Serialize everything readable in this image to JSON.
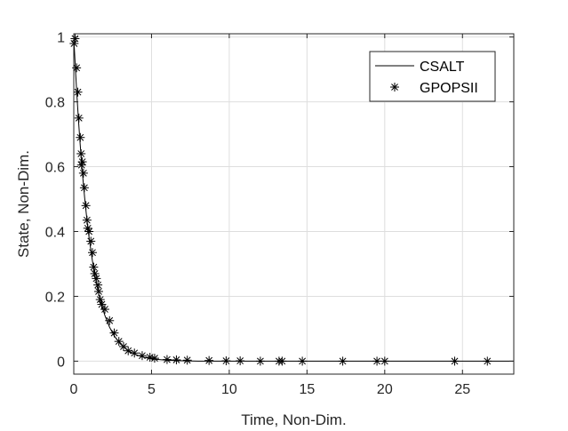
{
  "chart_data": {
    "type": "line",
    "xlabel": "Time, Non-Dim.",
    "ylabel": "State, Non-Dim.",
    "xlim": [
      0,
      28.3
    ],
    "ylim": [
      -0.04,
      1.01
    ],
    "xticks": [
      0,
      5,
      10,
      15,
      20,
      25
    ],
    "yticks": [
      0,
      0.2,
      0.4,
      0.6,
      0.8,
      1
    ],
    "xtick_labels": [
      "0",
      "5",
      "10",
      "15",
      "20",
      "25"
    ],
    "ytick_labels": [
      "0",
      "0.2",
      "0.4",
      "0.6",
      "0.8",
      "1"
    ],
    "grid": true,
    "legend_position": "top-right",
    "series": [
      {
        "name": "CSALT",
        "style": "solid-line",
        "color": "#000000",
        "decay_rate": 0.98,
        "x": [
          0,
          0.1,
          0.2,
          0.3,
          0.4,
          0.5,
          0.6,
          0.7,
          0.8,
          0.9,
          1.0,
          1.2,
          1.4,
          1.6,
          1.8,
          2.0,
          2.3,
          2.6,
          3.0,
          3.5,
          4.0,
          4.5,
          5.0,
          6.0,
          7.0,
          8.0,
          10.0,
          12.0,
          15.0,
          20.0,
          25.0,
          28.3
        ],
        "y": [
          1.0,
          0.906,
          0.822,
          0.745,
          0.676,
          0.613,
          0.556,
          0.504,
          0.457,
          0.414,
          0.375,
          0.309,
          0.254,
          0.208,
          0.171,
          0.141,
          0.105,
          0.078,
          0.053,
          0.032,
          0.02,
          0.012,
          0.007,
          0.003,
          0.001,
          0.0,
          0.0,
          0.0,
          0.0,
          0.0,
          0.0,
          0.0
        ]
      },
      {
        "name": "GPOPSII",
        "style": "asterisk-marker",
        "color": "#000000",
        "x": [
          0.02,
          0.08,
          0.18,
          0.26,
          0.33,
          0.42,
          0.47,
          0.5,
          0.55,
          0.62,
          0.68,
          0.78,
          0.85,
          0.9,
          0.98,
          1.1,
          1.2,
          1.28,
          1.35,
          1.45,
          1.55,
          1.6,
          1.7,
          1.8,
          2.0,
          2.3,
          2.6,
          2.9,
          3.2,
          3.5,
          3.9,
          4.4,
          4.9,
          5.2,
          6.0,
          6.6,
          7.3,
          8.7,
          9.8,
          10.7,
          12.0,
          13.2,
          13.4,
          14.7,
          17.3,
          19.5,
          20.0,
          24.5,
          26.6
        ],
        "y": [
          0.98,
          0.995,
          0.905,
          0.83,
          0.75,
          0.69,
          0.64,
          0.605,
          0.615,
          0.58,
          0.535,
          0.48,
          0.435,
          0.41,
          0.4,
          0.37,
          0.335,
          0.29,
          0.27,
          0.255,
          0.235,
          0.215,
          0.19,
          0.175,
          0.16,
          0.125,
          0.087,
          0.061,
          0.045,
          0.032,
          0.025,
          0.017,
          0.012,
          0.009,
          0.005,
          0.004,
          0.003,
          0.002,
          0.001,
          0.001,
          0.0,
          0.0,
          0.0,
          0.0,
          0.0,
          0.0,
          0.0,
          0.0,
          0.0
        ]
      }
    ]
  },
  "legend": {
    "items": [
      {
        "label": "CSALT",
        "symbol": "line"
      },
      {
        "label": "GPOPSII",
        "symbol": "asterisk"
      }
    ]
  }
}
